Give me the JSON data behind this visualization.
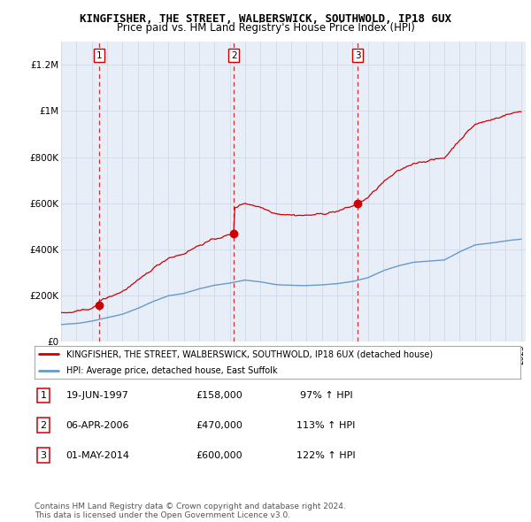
{
  "title": "KINGFISHER, THE STREET, WALBERSWICK, SOUTHWOLD, IP18 6UX",
  "subtitle": "Price paid vs. HM Land Registry's House Price Index (HPI)",
  "ylim": [
    0,
    1300000
  ],
  "yticks": [
    0,
    200000,
    400000,
    600000,
    800000,
    1000000,
    1200000
  ],
  "ytick_labels": [
    "£0",
    "£200K",
    "£400K",
    "£600K",
    "£800K",
    "£1M",
    "£1.2M"
  ],
  "sale_prices": [
    158000,
    470000,
    600000
  ],
  "sale_info": [
    {
      "label": "1",
      "date": "19-JUN-1997",
      "price": "£158,000",
      "hpi": "97% ↑ HPI"
    },
    {
      "label": "2",
      "date": "06-APR-2006",
      "price": "£470,000",
      "hpi": "113% ↑ HPI"
    },
    {
      "label": "3",
      "date": "01-MAY-2014",
      "price": "£600,000",
      "hpi": "122% ↑ HPI"
    }
  ],
  "red_line_color": "#cc0000",
  "blue_line_color": "#6699cc",
  "grid_color": "#d0d8e8",
  "plot_bg_color": "#e8eef8",
  "legend_label_red": "KINGFISHER, THE STREET, WALBERSWICK, SOUTHWOLD, IP18 6UX (detached house)",
  "legend_label_blue": "HPI: Average price, detached house, East Suffolk",
  "footer": "Contains HM Land Registry data © Crown copyright and database right 2024.\nThis data is licensed under the Open Government Licence v3.0."
}
